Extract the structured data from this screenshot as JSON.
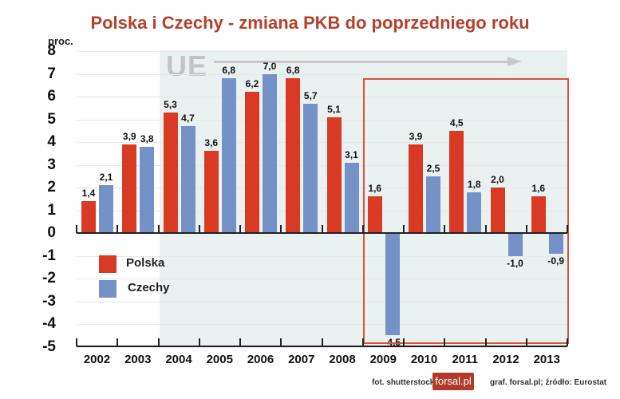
{
  "header": {
    "title": "Polska i Czechy - zmiana PKB do poprzedniego roku",
    "unit_label": "proc."
  },
  "annotations": {
    "ue_label": "UE",
    "crisis_box": "2009-2013 highlighted region"
  },
  "legend": {
    "items": [
      {
        "label": "Polska",
        "color": "#d93a24"
      },
      {
        "label": "Czechy",
        "color": "#7592c8"
      }
    ]
  },
  "footer": {
    "photo_credit": "fot. shutterstock",
    "logo_text": "forsal.pl",
    "source": "graf. forsal.pl;  źródło: Eurostat"
  },
  "chart_data": {
    "type": "bar",
    "title": "Polska i Czechy - zmiana PKB do poprzedniego roku",
    "xlabel": "",
    "ylabel": "proc.",
    "ylim": [
      -5,
      8
    ],
    "yticks": [
      "8",
      "7",
      "6",
      "5",
      "4",
      "3",
      "2",
      "1",
      "0",
      "-1",
      "-2",
      "-3",
      "-4",
      "-5"
    ],
    "grid": true,
    "legend_position": "lower-left inside plot",
    "categories": [
      "2002",
      "2003",
      "2004",
      "2005",
      "2006",
      "2007",
      "2008",
      "2009",
      "2010",
      "2011",
      "2012",
      "2013"
    ],
    "series": [
      {
        "name": "Polska",
        "color": "#d93a24",
        "values": [
          1.4,
          3.9,
          5.3,
          3.6,
          6.2,
          6.8,
          5.1,
          1.6,
          3.9,
          4.5,
          2.0,
          1.6
        ],
        "labels": [
          "1,4",
          "3,9",
          "5,3",
          "3,6",
          "6,2",
          "6,8",
          "5,1",
          "1,6",
          "3,9",
          "4,5",
          "2,0",
          "1,6"
        ]
      },
      {
        "name": "Czechy",
        "color": "#7592c8",
        "values": [
          2.1,
          3.8,
          4.7,
          6.8,
          7.0,
          5.7,
          3.1,
          -4.5,
          2.5,
          1.8,
          -1.0,
          -0.9
        ],
        "labels": [
          "2,1",
          "3,8",
          "4,7",
          "6,8",
          "7,0",
          "5,7",
          "3,1",
          "-4,5",
          "2,5",
          "1,8",
          "-1,0",
          "-0,9"
        ]
      }
    ]
  }
}
